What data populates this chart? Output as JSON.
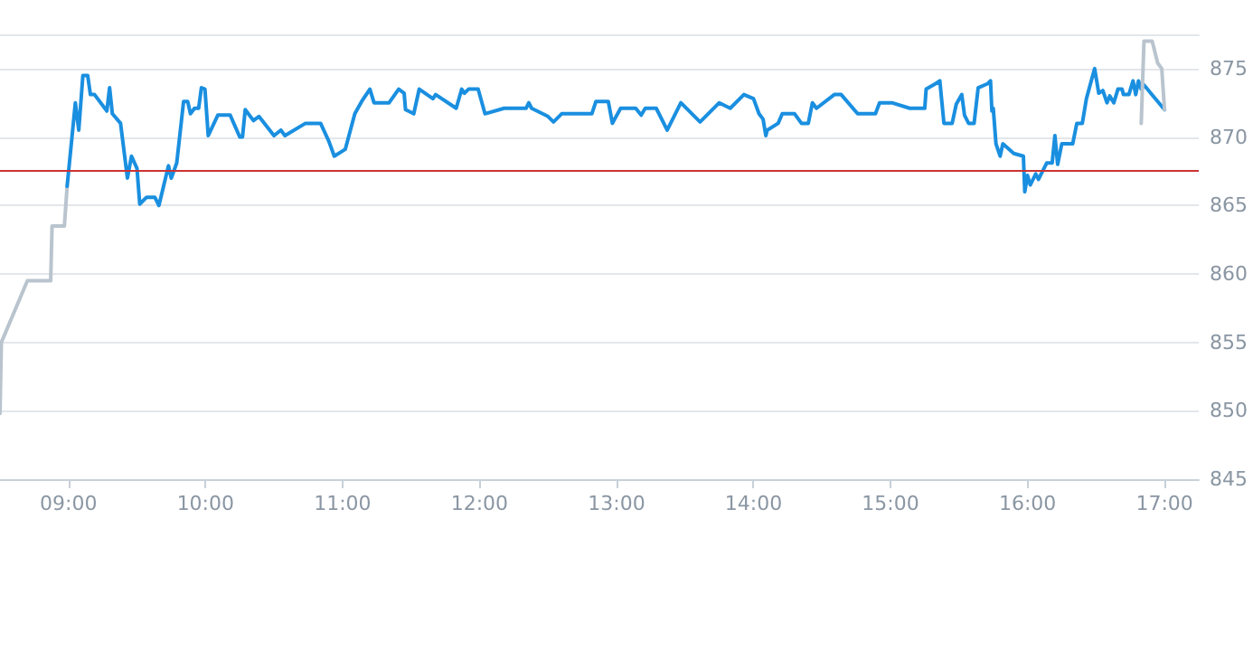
{
  "chart_data": {
    "type": "line",
    "xlim": [
      8.5,
      17.25
    ],
    "ylim": [
      845,
      877.5
    ],
    "xticks": [
      {
        "value": 9,
        "label": "09:00"
      },
      {
        "value": 10,
        "label": "10:00"
      },
      {
        "value": 11,
        "label": "11:00"
      },
      {
        "value": 12,
        "label": "12:00"
      },
      {
        "value": 13,
        "label": "13:00"
      },
      {
        "value": 14,
        "label": "14:00"
      },
      {
        "value": 15,
        "label": "15:00"
      },
      {
        "value": 16,
        "label": "16:00"
      },
      {
        "value": 17,
        "label": "17:00"
      }
    ],
    "yticks": [
      845,
      850,
      855,
      860,
      865,
      870,
      875
    ],
    "grid": "y",
    "marker": "none",
    "line_style": "solid",
    "ref_lines": [
      {
        "axis": "y",
        "value": 867.5,
        "color": "#cc3333"
      }
    ],
    "series": [
      {
        "color": "#b9c4ce",
        "x": [
          8.5,
          8.51,
          8.7,
          8.87,
          8.88,
          8.97,
          8.99
        ],
        "values": [
          849.8,
          855,
          859.5,
          859.5,
          863.5,
          863.5,
          866.4
        ]
      },
      {
        "color": "#1a8fe0",
        "x": [
          8.99,
          9.05,
          9.075,
          9.105,
          9.14,
          9.16,
          9.19,
          9.28,
          9.3,
          9.32,
          9.38,
          9.43,
          9.46,
          9.5,
          9.52,
          9.57,
          9.63,
          9.66,
          9.73,
          9.75,
          9.79,
          9.84,
          9.87,
          9.89,
          9.92,
          9.95,
          9.97,
          9.996,
          10.02,
          10.09,
          10.18,
          10.25,
          10.27,
          10.29,
          10.35,
          10.39,
          10.5,
          10.55,
          10.58,
          10.73,
          10.84,
          10.9,
          10.94,
          11.02,
          11.09,
          11.14,
          11.2,
          11.23,
          11.34,
          11.41,
          11.45,
          11.46,
          11.52,
          11.56,
          11.66,
          11.68,
          11.83,
          11.87,
          11.89,
          11.92,
          11.99,
          12.04,
          12.18,
          12.34,
          12.36,
          12.38,
          12.5,
          12.54,
          12.6,
          12.82,
          12.85,
          12.94,
          12.97,
          13.03,
          13.14,
          13.18,
          13.21,
          13.29,
          13.37,
          13.47,
          13.61,
          13.75,
          13.83,
          13.93,
          14.0,
          14.04,
          14.07,
          14.09,
          14.1,
          14.18,
          14.21,
          14.3,
          14.35,
          14.4,
          14.43,
          14.46,
          14.59,
          14.64,
          14.76,
          14.89,
          14.92,
          15.01,
          15.14,
          15.25,
          15.26,
          15.33,
          15.36,
          15.39,
          15.45,
          15.48,
          15.52,
          15.54,
          15.57,
          15.61,
          15.64,
          15.71,
          15.73,
          15.74,
          15.75,
          15.77,
          15.8,
          15.82,
          15.9,
          15.97,
          15.98,
          16.0,
          16.02,
          16.06,
          16.08,
          16.14,
          16.18,
          16.2,
          16.22,
          16.25,
          16.33,
          16.36,
          16.4,
          16.43,
          16.49,
          16.52,
          16.55,
          16.58,
          16.6,
          16.63,
          16.66,
          16.69,
          16.7,
          16.74,
          16.77,
          16.79,
          16.81,
          16.83,
          16.85,
          17.0
        ],
        "values": [
          866.4,
          872.5,
          870.5,
          874.5,
          874.5,
          873.1,
          873.1,
          871.9,
          873.6,
          871.7,
          871.0,
          867.0,
          868.6,
          867.7,
          865.1,
          865.6,
          865.6,
          865.0,
          867.9,
          867.0,
          868.1,
          872.6,
          872.6,
          871.7,
          872.1,
          872.1,
          873.6,
          873.5,
          870.1,
          871.6,
          871.6,
          870.0,
          870.0,
          872.0,
          871.2,
          871.5,
          870.1,
          870.5,
          870.1,
          871.0,
          871.0,
          869.7,
          868.6,
          869.1,
          871.7,
          872.6,
          873.5,
          872.5,
          872.5,
          873.5,
          873.2,
          872.0,
          871.7,
          873.5,
          872.8,
          873.1,
          872.1,
          873.5,
          873.2,
          873.5,
          873.5,
          871.7,
          872.1,
          872.1,
          872.5,
          872.1,
          871.5,
          871.1,
          871.7,
          871.7,
          872.6,
          872.6,
          871.0,
          872.1,
          872.1,
          871.6,
          872.1,
          872.1,
          870.5,
          872.5,
          871.1,
          872.5,
          872.1,
          873.1,
          872.8,
          871.7,
          871.3,
          870.1,
          870.5,
          871.0,
          871.7,
          871.7,
          871.0,
          871.0,
          872.5,
          872.1,
          873.1,
          873.1,
          871.7,
          871.7,
          872.5,
          872.5,
          872.1,
          872.1,
          873.5,
          873.9,
          874.1,
          871.0,
          871.0,
          872.4,
          873.1,
          871.6,
          871.0,
          871.0,
          873.6,
          873.9,
          874.1,
          871.9,
          872.1,
          869.5,
          868.6,
          869.5,
          868.8,
          868.6,
          866.0,
          867.2,
          866.5,
          867.3,
          866.9,
          868.1,
          868.1,
          870.1,
          868.0,
          869.5,
          869.5,
          871.0,
          871.0,
          872.8,
          875.0,
          873.2,
          873.4,
          872.5,
          873.0,
          872.5,
          873.5,
          873.5,
          873.1,
          873.1,
          874.1,
          873.1,
          874.1,
          873.5,
          873.8,
          872.0
        ]
      },
      {
        "color": "#b9c4ce",
        "x": [
          16.83,
          16.85,
          16.91,
          16.95,
          16.98,
          17.0
        ],
        "values": [
          871.0,
          877.0,
          877.0,
          875.4,
          875.0,
          872.0
        ]
      }
    ]
  }
}
